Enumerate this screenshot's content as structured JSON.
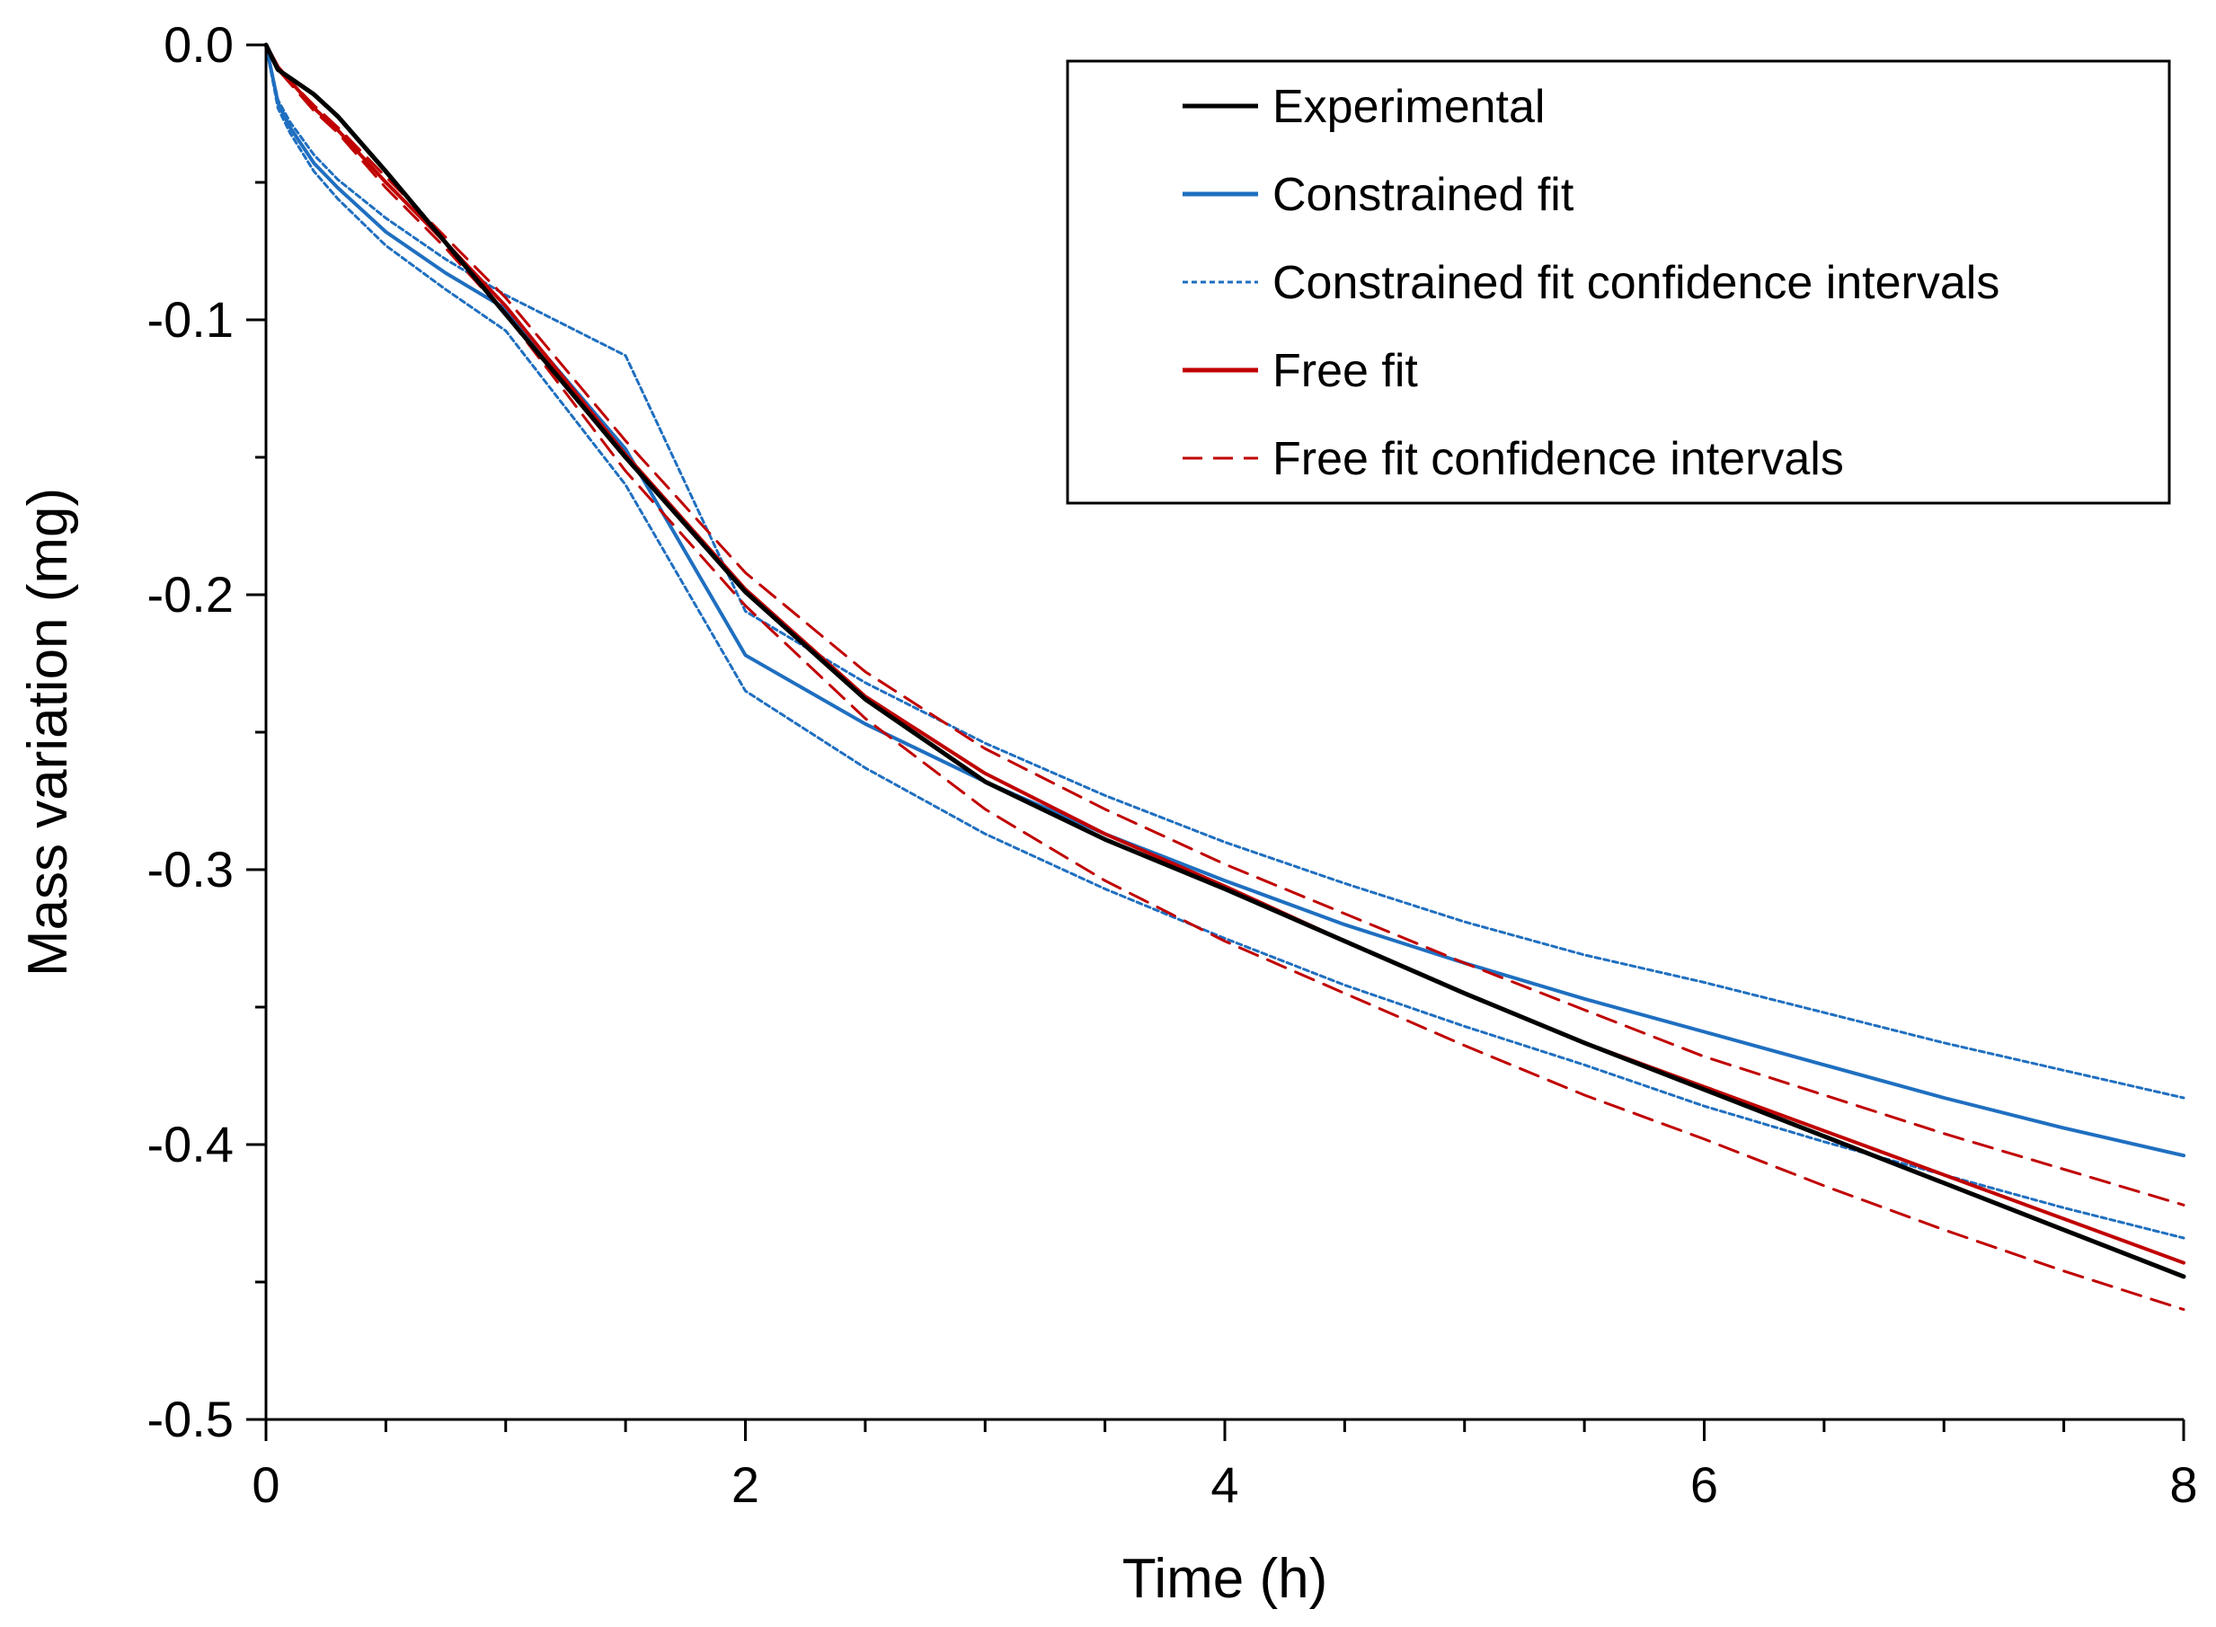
{
  "chart_data": {
    "type": "line",
    "title": "",
    "xlabel": "Time (h)",
    "ylabel": "Mass variation (mg)",
    "xlim": [
      0,
      8
    ],
    "ylim": [
      -0.5,
      0.0
    ],
    "x_ticks": [
      0,
      2,
      4,
      6,
      8
    ],
    "x_tick_labels": [
      "0",
      "2",
      "4",
      "6",
      "8"
    ],
    "x_minor_step": 0.5,
    "y_ticks": [
      0.0,
      -0.1,
      -0.2,
      -0.3,
      -0.4,
      -0.5
    ],
    "y_tick_labels": [
      "0.0",
      "-0.1",
      "-0.2",
      "-0.3",
      "-0.4",
      "-0.5"
    ],
    "y_minor_step": 0.05,
    "grid": false,
    "legend_position": "top-right",
    "x": [
      0,
      0.05,
      0.1,
      0.2,
      0.3,
      0.5,
      0.75,
      1,
      1.5,
      2,
      2.5,
      3,
      3.5,
      4,
      4.5,
      5,
      5.5,
      6,
      6.5,
      7,
      7.5,
      8
    ],
    "series": [
      {
        "name": "Experimental",
        "color": "#000000",
        "style": "solid",
        "values": [
          0,
          -0.009,
          -0.012,
          -0.018,
          -0.026,
          -0.046,
          -0.072,
          -0.098,
          -0.15,
          -0.199,
          -0.238,
          -0.268,
          -0.289,
          -0.307,
          -0.326,
          -0.345,
          -0.363,
          -0.38,
          -0.397,
          -0.414,
          -0.431,
          -0.448
        ]
      },
      {
        "name": "Constrained fit",
        "color": "#1f6fc0",
        "style": "solid",
        "values": [
          0,
          -0.021,
          -0.03,
          -0.043,
          -0.052,
          -0.068,
          -0.083,
          -0.096,
          -0.147,
          -0.222,
          -0.247,
          -0.268,
          -0.287,
          -0.304,
          -0.32,
          -0.334,
          -0.347,
          -0.359,
          -0.371,
          -0.383,
          -0.394,
          -0.404
        ]
      },
      {
        "name": "Constrained fit confidence intervals",
        "color": "#1f6fc0",
        "style": "dotted",
        "values": [
          0,
          -0.02,
          -0.028,
          -0.04,
          -0.049,
          -0.063,
          -0.078,
          -0.091,
          -0.113,
          -0.206,
          -0.232,
          -0.254,
          -0.273,
          -0.29,
          -0.305,
          -0.319,
          -0.331,
          -0.341,
          -0.352,
          -0.363,
          -0.373,
          -0.383
        ]
      },
      {
        "name": "Constrained fit confidence intervals (lower)",
        "color": "#1f6fc0",
        "style": "dotted",
        "values": [
          0,
          -0.023,
          -0.032,
          -0.046,
          -0.056,
          -0.073,
          -0.089,
          -0.104,
          -0.16,
          -0.235,
          -0.263,
          -0.287,
          -0.307,
          -0.325,
          -0.342,
          -0.357,
          -0.371,
          -0.386,
          -0.399,
          -0.411,
          -0.423,
          -0.434
        ]
      },
      {
        "name": "Free fit",
        "color": "#c00000",
        "style": "solid",
        "values": [
          0,
          -0.008,
          -0.013,
          -0.023,
          -0.031,
          -0.05,
          -0.072,
          -0.095,
          -0.149,
          -0.198,
          -0.237,
          -0.265,
          -0.287,
          -0.306,
          -0.326,
          -0.345,
          -0.363,
          -0.379,
          -0.395,
          -0.411,
          -0.427,
          -0.443
        ]
      },
      {
        "name": "Free fit confidence intervals",
        "color": "#c00000",
        "style": "dashed",
        "values": [
          0,
          -0.008,
          -0.013,
          -0.022,
          -0.03,
          -0.048,
          -0.07,
          -0.092,
          -0.144,
          -0.192,
          -0.228,
          -0.256,
          -0.278,
          -0.298,
          -0.316,
          -0.334,
          -0.351,
          -0.368,
          -0.382,
          -0.396,
          -0.409,
          -0.422
        ]
      },
      {
        "name": "Free fit confidence intervals (lower)",
        "color": "#c00000",
        "style": "dashed",
        "values": [
          0,
          -0.009,
          -0.014,
          -0.024,
          -0.032,
          -0.052,
          -0.074,
          -0.098,
          -0.155,
          -0.204,
          -0.245,
          -0.278,
          -0.304,
          -0.326,
          -0.345,
          -0.364,
          -0.382,
          -0.398,
          -0.415,
          -0.431,
          -0.446,
          -0.46
        ]
      }
    ],
    "legend": [
      {
        "label": "Experimental",
        "color": "#000000",
        "style": "solid"
      },
      {
        "label": "Constrained fit",
        "color": "#1f6fc0",
        "style": "solid"
      },
      {
        "label": "Constrained fit confidence intervals",
        "color": "#1f6fc0",
        "style": "dotted"
      },
      {
        "label": "Free fit",
        "color": "#c00000",
        "style": "solid"
      },
      {
        "label": "Free fit confidence intervals",
        "color": "#c00000",
        "style": "dashed"
      }
    ]
  }
}
